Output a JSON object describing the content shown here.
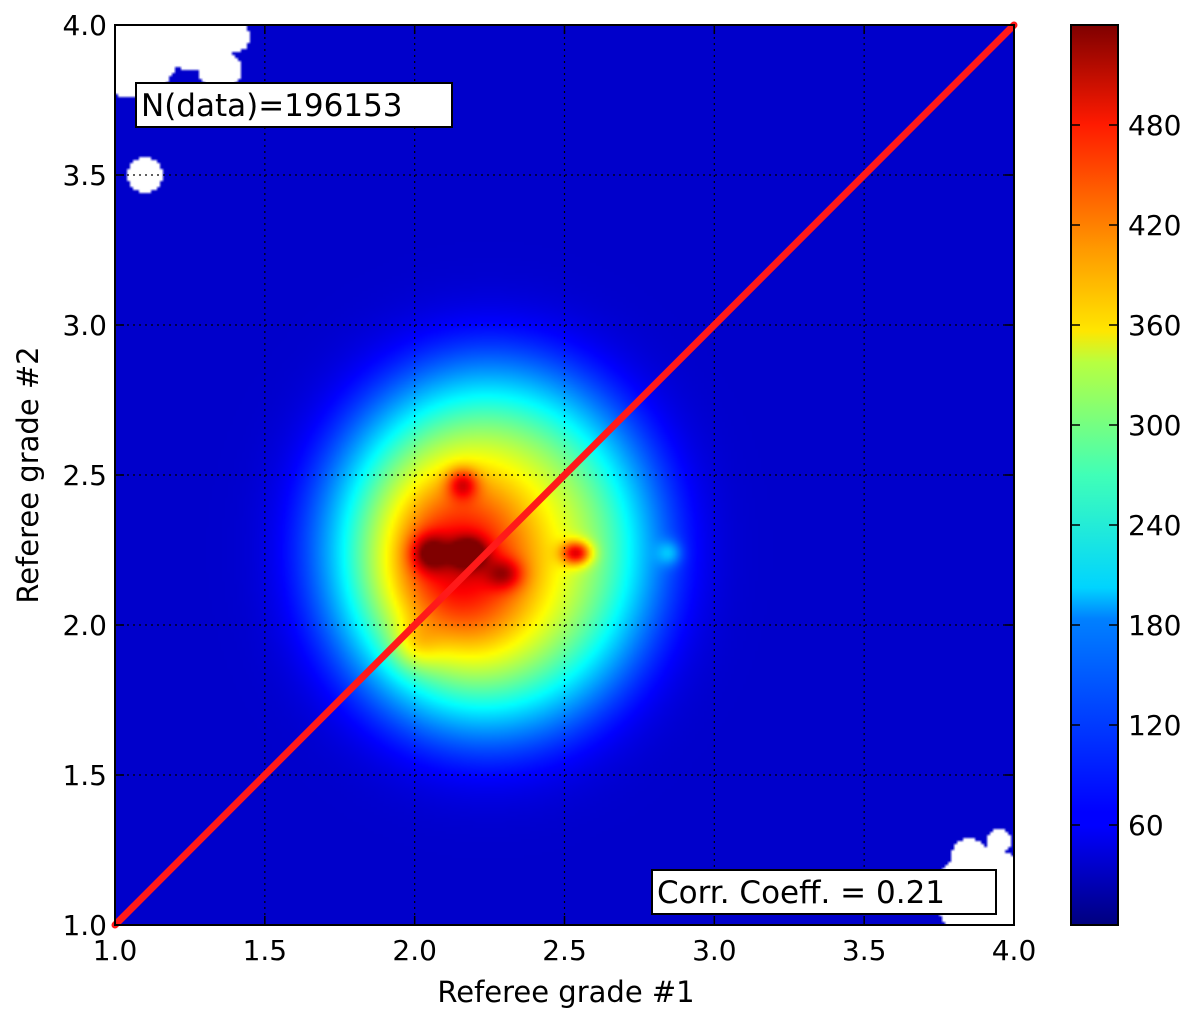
{
  "chart_data": {
    "type": "heatmap",
    "title": "",
    "xlabel": "Referee grade #1",
    "ylabel": "Referee grade #2",
    "xlim": [
      1.0,
      4.0
    ],
    "ylim": [
      1.0,
      4.0
    ],
    "xticks": [
      "1.0",
      "1.5",
      "2.0",
      "2.5",
      "3.0",
      "3.5",
      "4.0"
    ],
    "yticks": [
      "1.0",
      "1.5",
      "2.0",
      "2.5",
      "3.0",
      "3.5",
      "4.0"
    ],
    "xtick_values": [
      1.0,
      1.5,
      2.0,
      2.5,
      3.0,
      3.5,
      4.0
    ],
    "ytick_values": [
      1.0,
      1.5,
      2.0,
      2.5,
      3.0,
      3.5,
      4.0
    ],
    "grid": true,
    "colormap": "jet",
    "colorbar": {
      "range": [
        0,
        540
      ],
      "ticks": [
        "60",
        "120",
        "180",
        "240",
        "300",
        "360",
        "420",
        "480"
      ],
      "tick_values": [
        60,
        120,
        180,
        240,
        300,
        360,
        420,
        480
      ]
    },
    "reference_line": {
      "x": [
        1.0,
        4.0
      ],
      "y": [
        1.0,
        4.0
      ],
      "color": "#ff1a1a"
    },
    "annotations": {
      "n_data": "N(data)=196153",
      "corr": "Corr. Coeff. = 0.21"
    },
    "background_level": 40,
    "density_blobs": [
      {
        "x": 2.25,
        "y": 2.25,
        "sx": 0.55,
        "sy": 0.6,
        "v": 280
      },
      {
        "x": 2.15,
        "y": 2.2,
        "sx": 0.25,
        "sy": 0.3,
        "v": 170
      },
      {
        "x": 2.05,
        "y": 2.24,
        "sx": 0.06,
        "sy": 0.06,
        "v": 120
      },
      {
        "x": 2.18,
        "y": 2.24,
        "sx": 0.06,
        "sy": 0.05,
        "v": 140
      },
      {
        "x": 2.3,
        "y": 2.17,
        "sx": 0.06,
        "sy": 0.05,
        "v": 90
      },
      {
        "x": 2.54,
        "y": 2.24,
        "sx": 0.05,
        "sy": 0.04,
        "v": 180
      },
      {
        "x": 2.85,
        "y": 2.24,
        "sx": 0.04,
        "sy": 0.04,
        "v": 60
      },
      {
        "x": 2.16,
        "y": 2.47,
        "sx": 0.05,
        "sy": 0.05,
        "v": 110
      },
      {
        "x": 2.0,
        "y": 1.93,
        "sx": 0.08,
        "sy": 0.08,
        "v": 50
      }
    ],
    "empty_regions": [
      {
        "x": 1.05,
        "y": 3.93,
        "r": 0.17
      },
      {
        "x": 1.25,
        "y": 3.97,
        "r": 0.12
      },
      {
        "x": 1.35,
        "y": 3.85,
        "r": 0.07
      },
      {
        "x": 1.1,
        "y": 3.5,
        "r": 0.06
      },
      {
        "x": 1.4,
        "y": 3.96,
        "r": 0.05
      },
      {
        "x": 3.9,
        "y": 1.1,
        "r": 0.16
      },
      {
        "x": 3.85,
        "y": 1.23,
        "r": 0.06
      },
      {
        "x": 3.95,
        "y": 1.28,
        "r": 0.04
      }
    ]
  }
}
